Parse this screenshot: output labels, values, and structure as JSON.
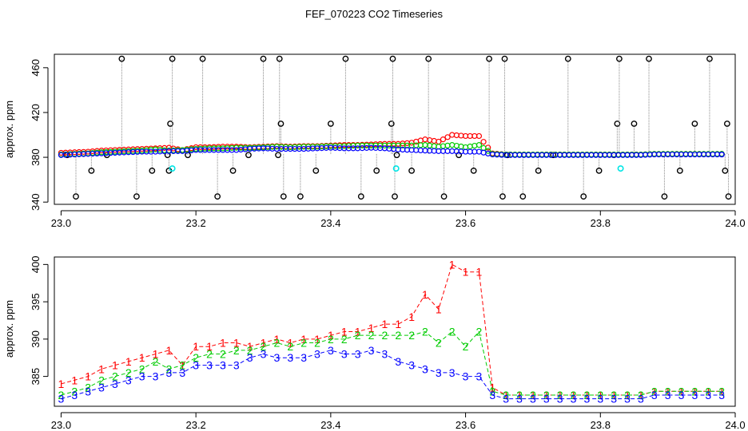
{
  "chart_data": [
    {
      "type": "scatter",
      "title": "FEF_070223  CO2 Timeseries",
      "ylabel": "approx. ppm",
      "xlim": [
        22.99,
        24.0
      ],
      "ylim": [
        338,
        472
      ],
      "x_ticks": [
        23.0,
        23.2,
        23.4,
        23.6,
        23.8,
        24.0
      ],
      "x_tick_labels": [
        "23.0",
        "23.2",
        "23.4",
        "23.6",
        "23.8",
        "24.0"
      ],
      "y_ticks": [
        340,
        380,
        420,
        460
      ],
      "y_tick_labels": [
        "340",
        "380",
        "420",
        "460"
      ],
      "outlier_levels": [
        345,
        368,
        410,
        468
      ],
      "outlier_x": [
        23.009,
        23.022,
        23.045,
        23.068,
        23.09,
        23.112,
        23.135,
        23.158,
        23.16,
        23.162,
        23.165,
        23.188,
        23.21,
        23.232,
        23.255,
        23.278,
        23.3,
        23.322,
        23.324,
        23.326,
        23.33,
        23.355,
        23.378,
        23.4,
        23.422,
        23.445,
        23.468,
        23.49,
        23.492,
        23.495,
        23.498,
        23.52,
        23.545,
        23.568,
        23.59,
        23.612,
        23.635,
        23.655,
        23.658,
        23.662,
        23.685,
        23.708,
        23.73,
        23.752,
        23.775,
        23.798,
        23.82,
        23.825,
        23.828,
        23.85,
        23.872,
        23.895,
        23.918,
        23.94,
        23.962,
        23.985,
        23.988,
        23.99
      ],
      "outlier_y": [
        382,
        345,
        368,
        382,
        468,
        345,
        368,
        382,
        368,
        410,
        468,
        382,
        468,
        345,
        368,
        382,
        468,
        382,
        468,
        410,
        345,
        345,
        368,
        410,
        468,
        345,
        368,
        410,
        468,
        345,
        382,
        368,
        468,
        345,
        382,
        368,
        468,
        345,
        468,
        382,
        345,
        368,
        382,
        468,
        345,
        368,
        382,
        410,
        468,
        410,
        468,
        345,
        368,
        410,
        468,
        368,
        410,
        345
      ],
      "cyan_x": [
        23.165,
        23.497,
        23.83
      ],
      "cyan_y": [
        370,
        370,
        370
      ]
    },
    {
      "type": "line",
      "ylabel": "approx. ppm",
      "xlim": [
        22.99,
        24.0
      ],
      "ylim": [
        381,
        401
      ],
      "x_ticks": [
        23.0,
        23.2,
        23.4,
        23.6,
        23.8,
        24.0
      ],
      "x_tick_labels": [
        "23.0",
        "23.2",
        "23.4",
        "23.6",
        "23.8",
        "24.0"
      ],
      "y_ticks": [
        385,
        390,
        395,
        400
      ],
      "y_tick_labels": [
        "385",
        "390",
        "395",
        "400"
      ],
      "x": [
        23.0,
        23.02,
        23.04,
        23.06,
        23.08,
        23.1,
        23.12,
        23.14,
        23.16,
        23.18,
        23.2,
        23.22,
        23.24,
        23.26,
        23.28,
        23.3,
        23.32,
        23.34,
        23.36,
        23.38,
        23.4,
        23.42,
        23.44,
        23.46,
        23.48,
        23.5,
        23.52,
        23.54,
        23.56,
        23.58,
        23.6,
        23.62,
        23.64,
        23.66,
        23.68,
        23.7,
        23.72,
        23.74,
        23.76,
        23.78,
        23.8,
        23.82,
        23.84,
        23.86,
        23.88,
        23.9,
        23.92,
        23.94,
        23.96,
        23.98
      ],
      "series": [
        {
          "name": "1",
          "values": [
            384,
            384.5,
            385,
            386,
            386.5,
            387,
            387.5,
            388,
            388.5,
            386.5,
            389,
            389,
            389.5,
            389.5,
            389,
            389.5,
            390,
            389.5,
            390,
            390,
            390.5,
            391,
            391,
            391.5,
            392,
            392,
            393,
            396,
            394,
            400,
            399,
            399,
            383.5,
            382.5,
            382.5,
            382.5,
            382.5,
            382.5,
            382.5,
            382.5,
            382.5,
            382.5,
            382.5,
            382.5,
            383,
            383,
            383,
            383,
            383,
            383
          ]
        },
        {
          "name": "2",
          "values": [
            382.5,
            383,
            383.5,
            384.5,
            385,
            385.5,
            386,
            387,
            386,
            386.5,
            387.5,
            388,
            388,
            388.5,
            388.5,
            389,
            389.5,
            389,
            389.5,
            389.5,
            390,
            390,
            390.5,
            390.5,
            390.5,
            390.5,
            390.5,
            391,
            389.5,
            391,
            389,
            391,
            383,
            382.5,
            382.5,
            382.5,
            382.5,
            382.5,
            382.5,
            382.5,
            382.5,
            382.5,
            382.5,
            382.5,
            383,
            383,
            383,
            383,
            383,
            383
          ]
        },
        {
          "name": "3",
          "values": [
            382,
            382.5,
            383,
            383.5,
            384,
            384.5,
            385,
            385,
            385.5,
            385.5,
            386.5,
            386.5,
            386.5,
            386.5,
            387.5,
            388,
            387.5,
            387.5,
            387.5,
            388,
            388.5,
            388,
            388,
            388.5,
            388,
            387,
            386.5,
            386,
            385.5,
            385.5,
            385,
            385,
            382.5,
            382,
            382,
            382,
            382,
            382,
            382,
            382,
            382,
            382,
            382,
            382,
            382.5,
            382.5,
            382.5,
            382.5,
            382.5,
            382.5
          ]
        }
      ]
    }
  ],
  "colors": {
    "series1": "#ff0000",
    "series2": "#00cc00",
    "series3": "#0000ff",
    "outlier": "#000000",
    "cyan": "#00e5e5",
    "dotted": "#888888"
  }
}
